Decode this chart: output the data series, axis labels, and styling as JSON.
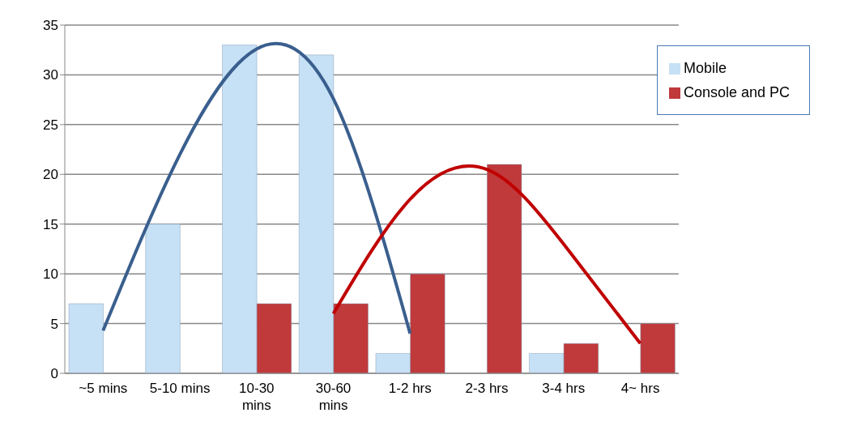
{
  "chart_data": {
    "type": "bar",
    "categories": [
      "~5 mins",
      "5-10 mins",
      "10-30 mins",
      "30-60 mins",
      "1-2 hrs",
      "2-3 hrs",
      "3-4 hrs",
      "4~ hrs"
    ],
    "series": [
      {
        "name": "Mobile",
        "color": "#c6e0f5",
        "values": [
          7,
          15,
          33,
          32,
          2,
          null,
          2,
          null
        ]
      },
      {
        "name": "Console and PC",
        "color": "#c0393b",
        "values": [
          null,
          null,
          7,
          7,
          10,
          21,
          3,
          5
        ]
      },
      {
        "type": "line",
        "color": "#3a5f8e",
        "values": [
          4.3,
          22,
          32.6,
          27.6,
          4,
          null,
          null,
          null
        ]
      },
      {
        "type": "line",
        "color": "#c00000",
        "values": [
          null,
          null,
          null,
          6,
          17.5,
          20.5,
          13,
          3
        ]
      }
    ],
    "ylim": [
      0,
      35
    ],
    "yticks": [
      0,
      5,
      10,
      15,
      20,
      25,
      30,
      35
    ],
    "grid": "y",
    "legend": "top right"
  }
}
